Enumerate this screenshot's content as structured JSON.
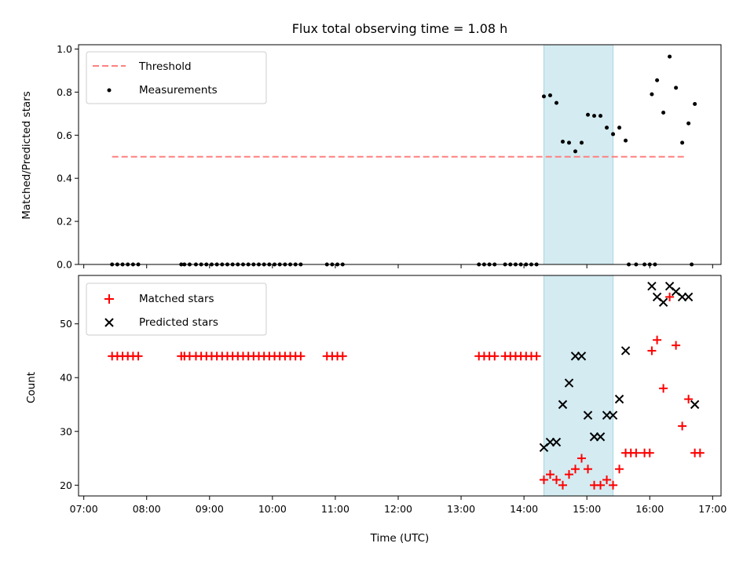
{
  "chart_data": [
    {
      "type": "scatter",
      "title": "Flux total observing time = 1.08 h",
      "xlabel": "",
      "ylabel": "Matched/Predicted stars",
      "ylim": [
        0,
        1.02
      ],
      "yticks": [
        "0.0",
        "0.2",
        "0.4",
        "0.6",
        "0.8",
        "1.0"
      ],
      "highlight_band": {
        "x_start": "14:19",
        "x_end": "15:25",
        "color": "#d3ebf1"
      },
      "threshold": {
        "name": "Threshold",
        "value": 0.5,
        "x_start": "07:27",
        "x_end": "16:35",
        "color": "#ff8080",
        "style": "dashed"
      },
      "legend": {
        "placement": "upper-left",
        "entries": [
          "Threshold",
          "Measurements"
        ]
      },
      "series": [
        {
          "name": "Measurements",
          "marker": "dot",
          "color": "#000000",
          "points": [
            [
              "07:27",
              0
            ],
            [
              "07:32",
              0
            ],
            [
              "07:37",
              0
            ],
            [
              "07:42",
              0
            ],
            [
              "07:47",
              0
            ],
            [
              "07:52",
              0
            ],
            [
              "08:33",
              0
            ],
            [
              "08:36",
              0
            ],
            [
              "08:41",
              0
            ],
            [
              "08:47",
              0
            ],
            [
              "08:52",
              0
            ],
            [
              "08:57",
              0
            ],
            [
              "09:02",
              0
            ],
            [
              "09:07",
              0
            ],
            [
              "09:12",
              0
            ],
            [
              "09:17",
              0
            ],
            [
              "09:22",
              0
            ],
            [
              "09:27",
              0
            ],
            [
              "09:32",
              0
            ],
            [
              "09:37",
              0
            ],
            [
              "09:42",
              0
            ],
            [
              "09:47",
              0
            ],
            [
              "09:52",
              0
            ],
            [
              "09:57",
              0
            ],
            [
              "10:02",
              0
            ],
            [
              "10:07",
              0
            ],
            [
              "10:12",
              0
            ],
            [
              "10:17",
              0
            ],
            [
              "10:22",
              0
            ],
            [
              "10:27",
              0
            ],
            [
              "10:52",
              0
            ],
            [
              "10:57",
              0
            ],
            [
              "11:02",
              0
            ],
            [
              "11:07",
              0
            ],
            [
              "13:17",
              0
            ],
            [
              "13:22",
              0
            ],
            [
              "13:27",
              0
            ],
            [
              "13:32",
              0
            ],
            [
              "13:42",
              0
            ],
            [
              "13:47",
              0
            ],
            [
              "13:52",
              0
            ],
            [
              "13:57",
              0
            ],
            [
              "14:02",
              0
            ],
            [
              "14:07",
              0
            ],
            [
              "14:12",
              0
            ],
            [
              "14:19",
              0.78
            ],
            [
              "14:25",
              0.785
            ],
            [
              "14:31",
              0.75
            ],
            [
              "14:37",
              0.57
            ],
            [
              "14:43",
              0.565
            ],
            [
              "14:49",
              0.525
            ],
            [
              "14:55",
              0.565
            ],
            [
              "15:01",
              0.695
            ],
            [
              "15:07",
              0.69
            ],
            [
              "15:13",
              0.69
            ],
            [
              "15:19",
              0.635
            ],
            [
              "15:25",
              0.605
            ],
            [
              "15:31",
              0.635
            ],
            [
              "15:37",
              0.575
            ],
            [
              "15:40",
              0
            ],
            [
              "15:47",
              0
            ],
            [
              "15:55",
              0
            ],
            [
              "16:00",
              0
            ],
            [
              "16:05",
              0
            ],
            [
              "16:02",
              0.79
            ],
            [
              "16:07",
              0.855
            ],
            [
              "16:13",
              0.705
            ],
            [
              "16:19",
              0.965
            ],
            [
              "16:25",
              0.82
            ],
            [
              "16:31",
              0.565
            ],
            [
              "16:37",
              0.655
            ],
            [
              "16:43",
              0.745
            ],
            [
              "16:40",
              0
            ]
          ]
        }
      ]
    },
    {
      "type": "scatter",
      "title": "",
      "xlabel": "Time (UTC)",
      "ylabel": "Count",
      "ylim": [
        18,
        59
      ],
      "yticks": [
        "20",
        "30",
        "40",
        "50"
      ],
      "xlim": [
        "06:55",
        "17:08"
      ],
      "xticks": [
        "07:00",
        "08:00",
        "09:00",
        "10:00",
        "11:00",
        "12:00",
        "13:00",
        "14:00",
        "15:00",
        "16:00",
        "17:00"
      ],
      "highlight_band": {
        "x_start": "14:19",
        "x_end": "15:25",
        "color": "#d3ebf1"
      },
      "legend": {
        "placement": "upper-left",
        "entries": [
          "Matched stars",
          "Predicted stars"
        ]
      },
      "series": [
        {
          "name": "Matched stars",
          "marker": "plus",
          "color": "#ff0000",
          "points": [
            [
              "07:27",
              44
            ],
            [
              "07:32",
              44
            ],
            [
              "07:37",
              44
            ],
            [
              "07:42",
              44
            ],
            [
              "07:47",
              44
            ],
            [
              "07:52",
              44
            ],
            [
              "08:33",
              44
            ],
            [
              "08:36",
              44
            ],
            [
              "08:41",
              44
            ],
            [
              "08:47",
              44
            ],
            [
              "08:52",
              44
            ],
            [
              "08:57",
              44
            ],
            [
              "09:02",
              44
            ],
            [
              "09:07",
              44
            ],
            [
              "09:12",
              44
            ],
            [
              "09:17",
              44
            ],
            [
              "09:22",
              44
            ],
            [
              "09:27",
              44
            ],
            [
              "09:32",
              44
            ],
            [
              "09:37",
              44
            ],
            [
              "09:42",
              44
            ],
            [
              "09:47",
              44
            ],
            [
              "09:52",
              44
            ],
            [
              "09:57",
              44
            ],
            [
              "10:02",
              44
            ],
            [
              "10:07",
              44
            ],
            [
              "10:12",
              44
            ],
            [
              "10:17",
              44
            ],
            [
              "10:22",
              44
            ],
            [
              "10:27",
              44
            ],
            [
              "10:52",
              44
            ],
            [
              "10:57",
              44
            ],
            [
              "11:02",
              44
            ],
            [
              "11:07",
              44
            ],
            [
              "13:17",
              44
            ],
            [
              "13:22",
              44
            ],
            [
              "13:27",
              44
            ],
            [
              "13:32",
              44
            ],
            [
              "13:42",
              44
            ],
            [
              "13:47",
              44
            ],
            [
              "13:52",
              44
            ],
            [
              "13:57",
              44
            ],
            [
              "14:02",
              44
            ],
            [
              "14:07",
              44
            ],
            [
              "14:12",
              44
            ],
            [
              "14:19",
              21
            ],
            [
              "14:25",
              22
            ],
            [
              "14:31",
              21
            ],
            [
              "14:37",
              20
            ],
            [
              "14:43",
              22
            ],
            [
              "14:49",
              23
            ],
            [
              "14:55",
              25
            ],
            [
              "15:01",
              23
            ],
            [
              "15:07",
              20
            ],
            [
              "15:13",
              20
            ],
            [
              "15:19",
              21
            ],
            [
              "15:25",
              20
            ],
            [
              "15:31",
              23
            ],
            [
              "15:37",
              26
            ],
            [
              "15:42",
              26
            ],
            [
              "15:47",
              26
            ],
            [
              "15:55",
              26
            ],
            [
              "16:00",
              26
            ],
            [
              "16:02",
              45
            ],
            [
              "16:07",
              47
            ],
            [
              "16:13",
              38
            ],
            [
              "16:19",
              55
            ],
            [
              "16:25",
              46
            ],
            [
              "16:31",
              31
            ],
            [
              "16:37",
              36
            ],
            [
              "16:43",
              26
            ],
            [
              "16:48",
              26
            ]
          ]
        },
        {
          "name": "Predicted stars",
          "marker": "x",
          "color": "#000000",
          "points": [
            [
              "14:19",
              27
            ],
            [
              "14:25",
              28
            ],
            [
              "14:31",
              28
            ],
            [
              "14:37",
              35
            ],
            [
              "14:43",
              39
            ],
            [
              "14:49",
              44
            ],
            [
              "14:55",
              44
            ],
            [
              "15:01",
              33
            ],
            [
              "15:07",
              29
            ],
            [
              "15:13",
              29
            ],
            [
              "15:19",
              33
            ],
            [
              "15:25",
              33
            ],
            [
              "15:31",
              36
            ],
            [
              "15:37",
              45
            ],
            [
              "16:02",
              57
            ],
            [
              "16:07",
              55
            ],
            [
              "16:13",
              54
            ],
            [
              "16:19",
              57
            ],
            [
              "16:25",
              56
            ],
            [
              "16:31",
              55
            ],
            [
              "16:37",
              55
            ],
            [
              "16:43",
              35
            ]
          ]
        }
      ]
    }
  ]
}
